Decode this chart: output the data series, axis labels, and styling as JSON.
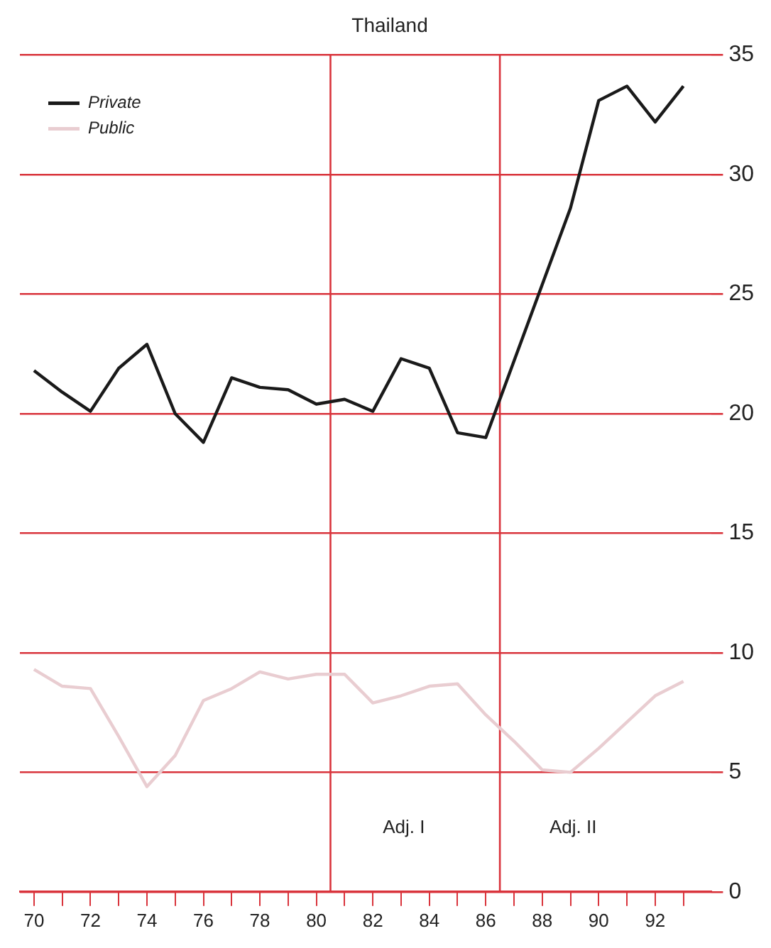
{
  "chart_data": {
    "type": "line",
    "title": "Thailand",
    "x": [
      70,
      71,
      72,
      73,
      74,
      75,
      76,
      77,
      78,
      79,
      80,
      81,
      82,
      83,
      84,
      85,
      86,
      87,
      88,
      89,
      90,
      91,
      92,
      93
    ],
    "series": [
      {
        "name": "Private",
        "color": "#1a1a1a",
        "values": [
          21.8,
          20.9,
          20.1,
          21.9,
          22.9,
          20.0,
          18.8,
          21.5,
          21.1,
          21.0,
          20.4,
          20.6,
          20.1,
          22.3,
          21.9,
          19.2,
          19.0,
          22.2,
          25.4,
          28.6,
          33.1,
          33.7,
          32.2,
          33.7
        ]
      },
      {
        "name": "Public",
        "color": "#e9cdd1",
        "values": [
          9.3,
          8.6,
          8.5,
          6.5,
          4.4,
          5.7,
          8.0,
          8.5,
          9.2,
          8.9,
          9.1,
          9.1,
          7.9,
          8.2,
          8.6,
          8.7,
          7.4,
          6.3,
          5.1,
          5.0,
          6.0,
          7.1,
          8.2,
          8.8
        ]
      }
    ],
    "xlim": [
      69.5,
      94
    ],
    "xticks": [
      70,
      {
        "value": 71,
        "label": null
      },
      72,
      {
        "value": 73,
        "label": null
      },
      74,
      {
        "value": 75,
        "label": null
      },
      76,
      {
        "value": 77,
        "label": null
      },
      78,
      {
        "value": 79,
        "label": null
      },
      80,
      {
        "value": 81,
        "label": null
      },
      82,
      {
        "value": 83,
        "label": null
      },
      84,
      {
        "value": 85,
        "label": null
      },
      86,
      {
        "value": 87,
        "label": null
      },
      88,
      {
        "value": 89,
        "label": null
      },
      90,
      {
        "value": 91,
        "label": null
      },
      92,
      {
        "value": 93,
        "label": null
      }
    ],
    "ylim": [
      0,
      35
    ],
    "yticks": [
      0,
      5,
      10,
      15,
      20,
      25,
      30,
      35
    ],
    "grid": "y",
    "legend": "top left",
    "marker": "none",
    "line_style": "solid",
    "ref_lines": [
      {
        "axis": "x",
        "value": 80.5,
        "color": "#d9343c",
        "label": "Adj. I"
      },
      {
        "axis": "x",
        "value": 86.5,
        "color": "#d9343c",
        "label": "Adj. II"
      }
    ]
  }
}
